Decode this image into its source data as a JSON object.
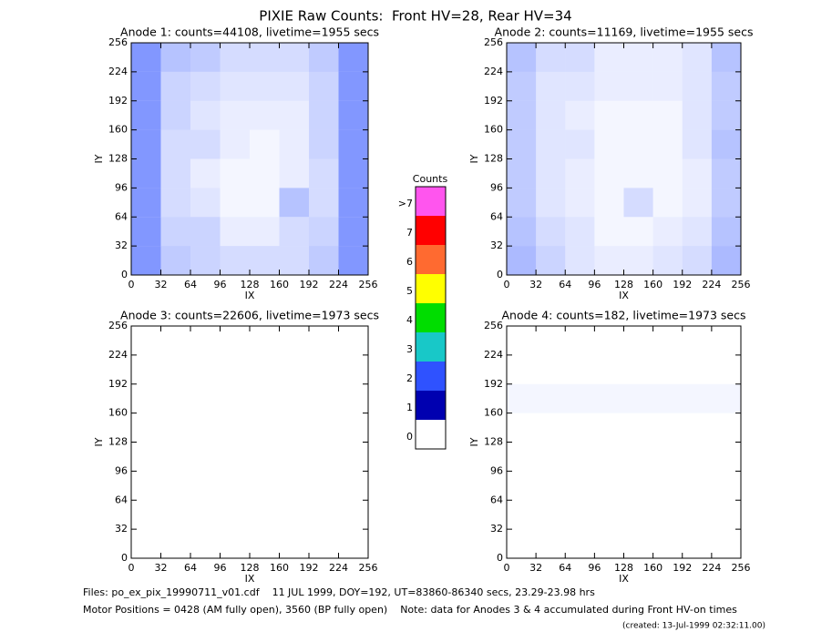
{
  "header": {
    "title": "PIXIE Raw Counts:  Front HV=28, Rear HV=34"
  },
  "chart_data": [
    {
      "type": "heatmap",
      "title": "Anode 1: counts=44108, livetime=1955 secs",
      "xlabel": "IX",
      "ylabel": "IY",
      "xlim": [
        0,
        256
      ],
      "ylim": [
        0,
        256
      ],
      "xticks": [
        0,
        32,
        64,
        96,
        128,
        160,
        192,
        224,
        256
      ],
      "yticks": [
        0,
        32,
        64,
        96,
        128,
        160,
        192,
        224,
        256
      ],
      "color": "#2f52ff",
      "values": [
        [
          1.2,
          0.6,
          0.5,
          0.4,
          0.4,
          0.4,
          0.6,
          1.2
        ],
        [
          1.2,
          0.5,
          0.5,
          0.2,
          0.2,
          0.4,
          0.5,
          1.2
        ],
        [
          1.2,
          0.4,
          0.3,
          0.1,
          0.1,
          0.7,
          0.4,
          1.2
        ],
        [
          1.2,
          0.4,
          0.2,
          0.1,
          0.1,
          0.2,
          0.4,
          1.2
        ],
        [
          1.2,
          0.4,
          0.4,
          0.2,
          0.1,
          0.2,
          0.5,
          1.2
        ],
        [
          1.2,
          0.5,
          0.3,
          0.2,
          0.2,
          0.2,
          0.5,
          1.2
        ],
        [
          1.2,
          0.5,
          0.4,
          0.3,
          0.3,
          0.3,
          0.5,
          1.2
        ],
        [
          1.2,
          0.7,
          0.6,
          0.4,
          0.4,
          0.4,
          0.6,
          1.2
        ]
      ]
    },
    {
      "type": "heatmap",
      "title": "Anode 2: counts=11169, livetime=1955 secs",
      "xlabel": "IX",
      "ylabel": "IY",
      "xlim": [
        0,
        256
      ],
      "ylim": [
        0,
        256
      ],
      "xticks": [
        0,
        32,
        64,
        96,
        128,
        160,
        192,
        224,
        256
      ],
      "yticks": [
        0,
        32,
        64,
        96,
        128,
        160,
        192,
        224,
        256
      ],
      "color": "#2f52ff",
      "values": [
        [
          0.8,
          0.5,
          0.3,
          0.2,
          0.2,
          0.3,
          0.4,
          0.8
        ],
        [
          0.7,
          0.4,
          0.3,
          0.1,
          0.1,
          0.2,
          0.3,
          0.7
        ],
        [
          0.6,
          0.3,
          0.2,
          0.1,
          0.4,
          0.1,
          0.2,
          0.6
        ],
        [
          0.6,
          0.3,
          0.2,
          0.1,
          0.1,
          0.1,
          0.2,
          0.6
        ],
        [
          0.6,
          0.3,
          0.3,
          0.1,
          0.1,
          0.1,
          0.3,
          0.7
        ],
        [
          0.6,
          0.3,
          0.2,
          0.1,
          0.1,
          0.1,
          0.3,
          0.6
        ],
        [
          0.6,
          0.3,
          0.3,
          0.2,
          0.2,
          0.2,
          0.3,
          0.6
        ],
        [
          0.7,
          0.4,
          0.4,
          0.2,
          0.2,
          0.2,
          0.3,
          0.7
        ]
      ]
    },
    {
      "type": "heatmap",
      "title": "Anode 3: counts=22606, livetime=1973 secs",
      "xlabel": "IX",
      "ylabel": "IY",
      "xlim": [
        0,
        256
      ],
      "ylim": [
        0,
        256
      ],
      "xticks": [
        0,
        32,
        64,
        96,
        128,
        160,
        192,
        224,
        256
      ],
      "yticks": [
        0,
        32,
        64,
        96,
        128,
        160,
        192,
        224,
        256
      ],
      "color": "#2f52ff",
      "values": [
        [
          0,
          0,
          0,
          0,
          0,
          0,
          0,
          0
        ],
        [
          0,
          0,
          0,
          0,
          0,
          0,
          0,
          0
        ],
        [
          0,
          0,
          0,
          0,
          0,
          0,
          0,
          0
        ],
        [
          0,
          0,
          0,
          0,
          0,
          0,
          0,
          0
        ],
        [
          0,
          0,
          0,
          0,
          0,
          0,
          0,
          0
        ],
        [
          0,
          0,
          0,
          0,
          0,
          0,
          0,
          0
        ],
        [
          0,
          0,
          0,
          0,
          0,
          0,
          0,
          0
        ],
        [
          0,
          0,
          0,
          0,
          0,
          0,
          0,
          0
        ]
      ]
    },
    {
      "type": "heatmap",
      "title": "Anode 4: counts=182, livetime=1973 secs",
      "xlabel": "IX",
      "ylabel": "IY",
      "xlim": [
        0,
        256
      ],
      "ylim": [
        0,
        256
      ],
      "xticks": [
        0,
        32,
        64,
        96,
        128,
        160,
        192,
        224,
        256
      ],
      "yticks": [
        0,
        32,
        64,
        96,
        128,
        160,
        192,
        224,
        256
      ],
      "color": "#2f52ff",
      "values": [
        [
          0,
          0,
          0,
          0,
          0,
          0,
          0,
          0
        ],
        [
          0,
          0,
          0,
          0,
          0,
          0,
          0,
          0
        ],
        [
          0,
          0,
          0,
          0,
          0,
          0,
          0,
          0
        ],
        [
          0,
          0,
          0,
          0,
          0,
          0,
          0,
          0
        ],
        [
          0,
          0,
          0,
          0,
          0,
          0,
          0,
          0
        ],
        [
          0.1,
          0.1,
          0.1,
          0.1,
          0.1,
          0.1,
          0.1,
          0.1
        ],
        [
          0,
          0,
          0,
          0,
          0,
          0,
          0,
          0
        ],
        [
          0,
          0,
          0,
          0,
          0,
          0,
          0,
          0
        ]
      ]
    }
  ],
  "colorbar": {
    "title": "Counts",
    "labels": [
      "0",
      "1",
      "2",
      "3",
      "4",
      "5",
      "6",
      "7",
      ">7"
    ],
    "colors": [
      "#ffffff",
      "#0000b0",
      "#2f52ff",
      "#18c8c8",
      "#00dd00",
      "#ffff00",
      "#ff6a30",
      "#ff0000",
      "#ff55ee"
    ]
  },
  "footer": {
    "files": "Files: po_ex_pix_19990711_v01.cdf    11 JUL 1999, DOY=192, UT=83860-86340 secs, 23.29-23.98 hrs",
    "motor": "Motor Positions = 0428 (AM fully open), 3560 (BP fully open)    Note: data for Anodes 3 & 4 accumulated during Front HV-on times",
    "created": "(created: 13-Jul-1999 02:32:11.00)"
  }
}
